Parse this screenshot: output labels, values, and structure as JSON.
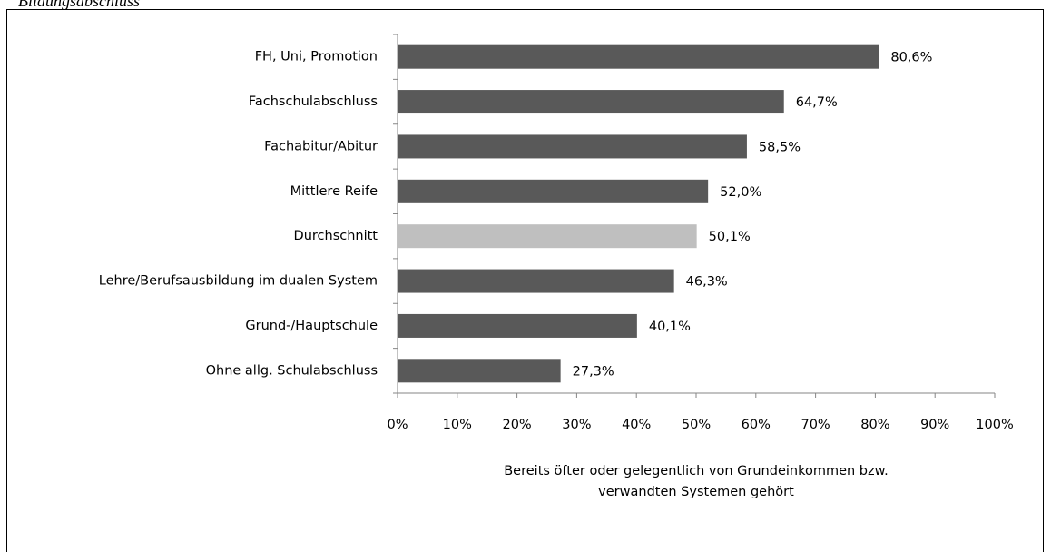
{
  "chart_data": {
    "type": "bar",
    "orientation": "horizontal",
    "title": "Bildungsabschluss",
    "xlabel": [
      "Bereits öfter oder gelegentlich von Grundeinkommen bzw.",
      "verwandten Systemen gehört"
    ],
    "categories": [
      "FH, Uni, Promotion",
      "Fachschulabschluss",
      "Fachabitur/Abitur",
      "Mittlere Reife",
      "Durchschnitt",
      "Lehre/Berufsausbildung im dualen System",
      "Grund-/Hauptschule",
      "Ohne allg. Schulabschluss"
    ],
    "values": [
      80.6,
      64.7,
      58.5,
      52.0,
      50.1,
      46.3,
      40.1,
      27.3
    ],
    "value_labels": [
      "80,6%",
      "64,7%",
      "58,5%",
      "52,0%",
      "50,1%",
      "46,3%",
      "40,1%",
      "27,3%"
    ],
    "colors": [
      "#595959",
      "#595959",
      "#595959",
      "#595959",
      "#bfbfbf",
      "#595959",
      "#595959",
      "#595959"
    ],
    "xlim": [
      0,
      100
    ],
    "xticks": [
      {
        "value": 0,
        "label": "0%"
      },
      {
        "value": 10,
        "label": "10%"
      },
      {
        "value": 20,
        "label": "20%"
      },
      {
        "value": 30,
        "label": "30%"
      },
      {
        "value": 40,
        "label": "40%"
      },
      {
        "value": 50,
        "label": "50%"
      },
      {
        "value": 60,
        "label": "60%"
      },
      {
        "value": 70,
        "label": "70%"
      },
      {
        "value": 80,
        "label": "80%"
      },
      {
        "value": 90,
        "label": "90%"
      },
      {
        "value": 100,
        "label": "100%"
      }
    ],
    "grid": false
  }
}
